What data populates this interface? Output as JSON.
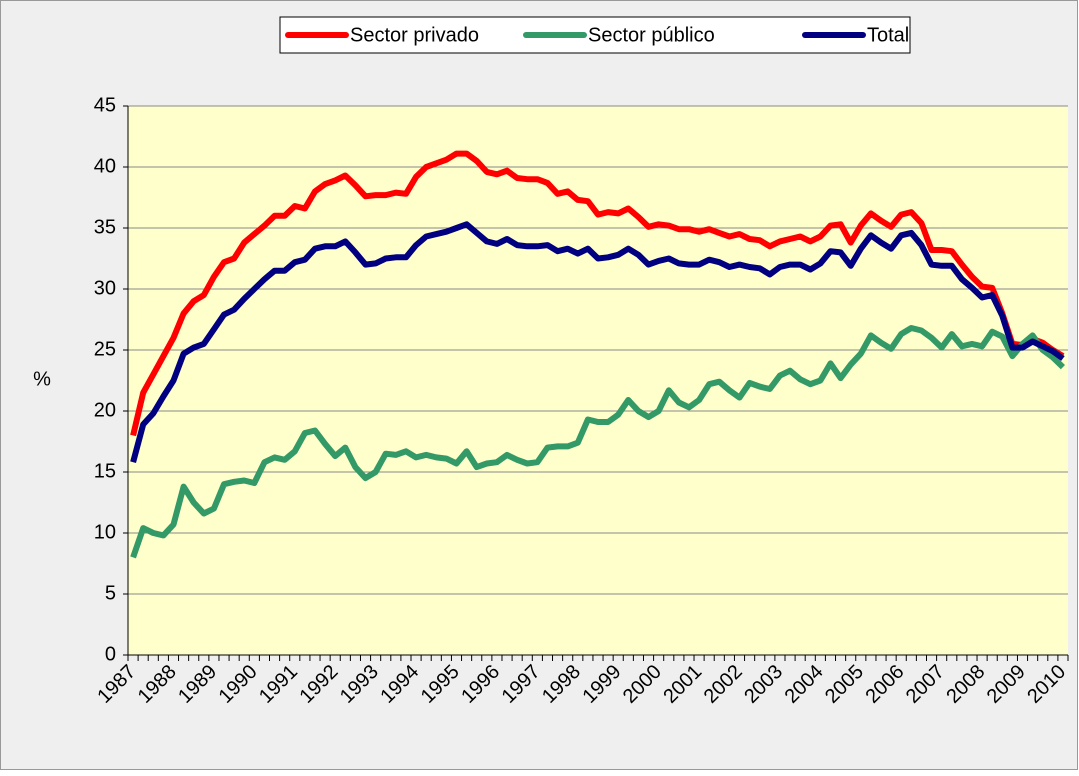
{
  "chart_data": {
    "type": "line",
    "y_label": "%",
    "categories": [
      "1987",
      null,
      null,
      null,
      "1988",
      null,
      null,
      null,
      "1989",
      null,
      null,
      null,
      "1990",
      null,
      null,
      null,
      "1991",
      null,
      null,
      null,
      "1992",
      null,
      null,
      null,
      "1993",
      null,
      null,
      null,
      "1994",
      null,
      null,
      null,
      "1995",
      null,
      null,
      null,
      "1996",
      null,
      null,
      null,
      "1997",
      null,
      null,
      null,
      "1998",
      null,
      null,
      null,
      "1999",
      null,
      null,
      null,
      "2000",
      null,
      null,
      null,
      "2001",
      null,
      null,
      null,
      "2002",
      null,
      null,
      null,
      "2003",
      null,
      null,
      null,
      "2004",
      null,
      null,
      null,
      "2005",
      null,
      null,
      null,
      "2006",
      null,
      null,
      null,
      "2007",
      null,
      null,
      null,
      "2008",
      null,
      null,
      null,
      "2009",
      null,
      null,
      null,
      "2010"
    ],
    "series": [
      {
        "name": "Sector privado",
        "color": "#ff0000",
        "values": [
          18,
          21.5,
          23,
          24.5,
          26,
          28,
          29,
          29.5,
          31,
          32.2,
          32.5,
          33.8,
          34.5,
          35.2,
          36,
          36,
          36.8,
          36.6,
          38,
          38.6,
          38.9,
          39.3,
          38.5,
          37.6,
          37.7,
          37.7,
          37.9,
          37.8,
          39.2,
          40,
          40.3,
          40.6,
          41.1,
          41.1,
          40.5,
          39.6,
          39.4,
          39.7,
          39.1,
          39,
          39,
          38.7,
          37.8,
          38,
          37.3,
          37.2,
          36.1,
          36.3,
          36.2,
          36.6,
          35.9,
          35.1,
          35.3,
          35.2,
          34.9,
          34.9,
          34.7,
          34.9,
          34.6,
          34.3,
          34.5,
          34.1,
          34,
          33.5,
          33.9,
          34.1,
          34.3,
          33.9,
          34.3,
          35.2,
          35.3,
          33.8,
          35.2,
          36.2,
          35.6,
          35.1,
          36.1,
          36.3,
          35.4,
          33.2,
          33.2,
          33.1,
          32,
          31,
          30.2,
          30.1,
          28,
          25.5,
          25.4,
          25.9,
          25.6,
          25,
          24.5
        ]
      },
      {
        "name": "Sector público",
        "color": "#339966",
        "values": [
          8,
          10.4,
          10,
          9.8,
          10.7,
          13.8,
          12.5,
          11.6,
          12,
          14,
          14.2,
          14.3,
          14.1,
          15.8,
          16.2,
          16,
          16.7,
          18.2,
          18.4,
          17.3,
          16.3,
          17,
          15.4,
          14.5,
          15,
          16.5,
          16.4,
          16.7,
          16.2,
          16.4,
          16.2,
          16.1,
          15.7,
          16.7,
          15.4,
          15.7,
          15.8,
          16.4,
          16,
          15.7,
          15.8,
          17,
          17.1,
          17.1,
          17.4,
          19.3,
          19.1,
          19.1,
          19.7,
          20.9,
          20,
          19.5,
          20,
          21.7,
          20.7,
          20.3,
          20.9,
          22.2,
          22.4,
          21.7,
          21.1,
          22.3,
          22,
          21.8,
          22.9,
          23.3,
          22.6,
          22.2,
          22.5,
          23.9,
          22.7,
          23.8,
          24.7,
          26.2,
          25.6,
          25.1,
          26.3,
          26.8,
          26.6,
          26,
          25.2,
          26.3,
          25.3,
          25.5,
          25.3,
          26.5,
          26.1,
          24.5,
          25.5,
          26.2,
          25,
          24.4,
          23.6
        ]
      },
      {
        "name": "Total",
        "color": "#000080",
        "values": [
          15.8,
          18.9,
          19.8,
          21.2,
          22.5,
          24.7,
          25.2,
          25.5,
          26.7,
          27.9,
          28.3,
          29.2,
          30,
          30.8,
          31.5,
          31.5,
          32.2,
          32.4,
          33.3,
          33.5,
          33.5,
          33.9,
          33,
          32,
          32.1,
          32.5,
          32.6,
          32.6,
          33.6,
          34.3,
          34.5,
          34.7,
          35,
          35.3,
          34.6,
          33.9,
          33.7,
          34.1,
          33.6,
          33.5,
          33.5,
          33.6,
          33.1,
          33.3,
          32.9,
          33.3,
          32.5,
          32.6,
          32.8,
          33.3,
          32.8,
          32,
          32.3,
          32.5,
          32.1,
          32,
          32,
          32.4,
          32.2,
          31.8,
          32,
          31.8,
          31.7,
          31.2,
          31.8,
          32,
          32,
          31.6,
          32.1,
          33.1,
          33,
          31.9,
          33.3,
          34.4,
          33.8,
          33.3,
          34.4,
          34.6,
          33.6,
          32,
          31.9,
          31.9,
          30.8,
          30.1,
          29.3,
          29.5,
          27.8,
          25.2,
          25.2,
          25.7,
          25.3,
          24.9,
          24.3
        ]
      }
    ],
    "ylim": [
      0,
      45
    ],
    "yticks": [
      0,
      5,
      10,
      15,
      20,
      25,
      30,
      35,
      40,
      45
    ],
    "grid": true,
    "legend": "top"
  }
}
